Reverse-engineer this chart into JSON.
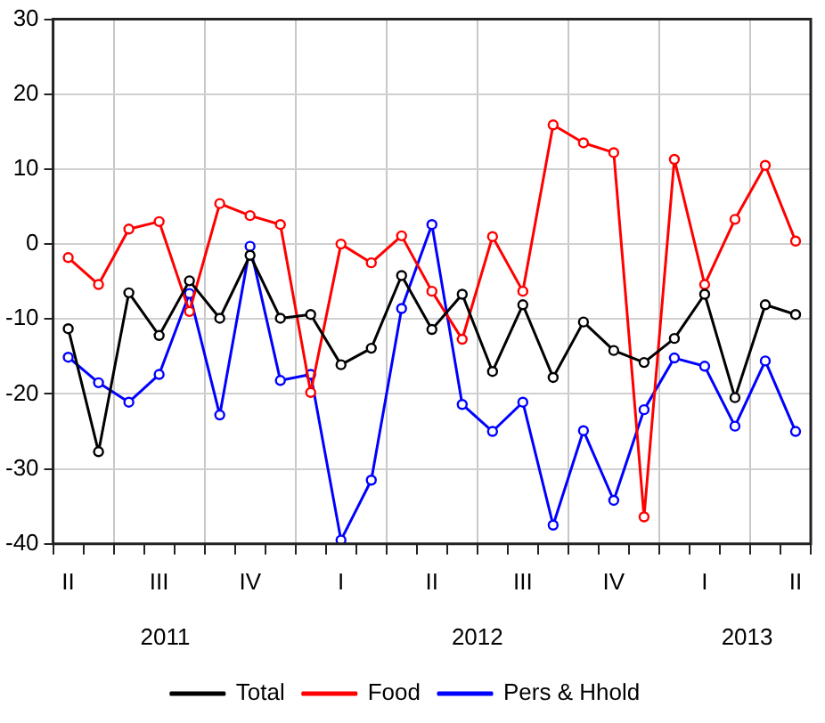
{
  "chart_data": {
    "type": "line",
    "categories": [
      "II",
      null,
      null,
      "III",
      null,
      null,
      "IV",
      null,
      null,
      "I",
      null,
      null,
      "II",
      null,
      null,
      "III",
      null,
      null,
      "IV",
      null,
      null,
      "I",
      null,
      null,
      "II"
    ],
    "series": [
      {
        "name": "Total",
        "color": "#000000",
        "values": [
          -11.3,
          -27.7,
          -6.5,
          -12.2,
          -4.9,
          -9.9,
          -1.5,
          -9.9,
          -9.4,
          -16.1,
          -13.9,
          -4.2,
          -11.4,
          -6.7,
          -17,
          -8.1,
          -17.8,
          -10.4,
          -14.2,
          -15.8,
          -12.6,
          -6.7,
          -20.5,
          -8.1,
          -9.4
        ]
      },
      {
        "name": "Food",
        "color": "#ff0000",
        "values": [
          -1.8,
          -5.4,
          2,
          3,
          -9,
          5.4,
          3.8,
          2.6,
          -19.8,
          0,
          -2.5,
          1.1,
          -6.3,
          -12.7,
          1,
          -6.3,
          15.9,
          13.5,
          12.2,
          -36.4,
          11.3,
          -5.4,
          3.3,
          10.5,
          0.4
        ]
      },
      {
        "name": "Pers & Hhold",
        "color": "#0000ff",
        "values": [
          -15.1,
          -18.5,
          -21.1,
          -17.4,
          -6.6,
          -22.8,
          -0.3,
          -18.2,
          -17.4,
          -39.5,
          -31.5,
          -8.6,
          2.6,
          -21.4,
          -25,
          -21.1,
          -37.5,
          -24.9,
          -34.2,
          -22.1,
          -15.2,
          -16.3,
          -24.3,
          -15.6,
          -25
        ]
      }
    ],
    "annotations": [
      "2011",
      "2012",
      "2013"
    ],
    "ylim": [
      -40,
      30
    ],
    "yticks": [
      -40,
      -30,
      -20,
      -10,
      0,
      10,
      20,
      30
    ],
    "grid": true,
    "legend": "bottom",
    "marker": "circle",
    "line_style": "solid"
  }
}
